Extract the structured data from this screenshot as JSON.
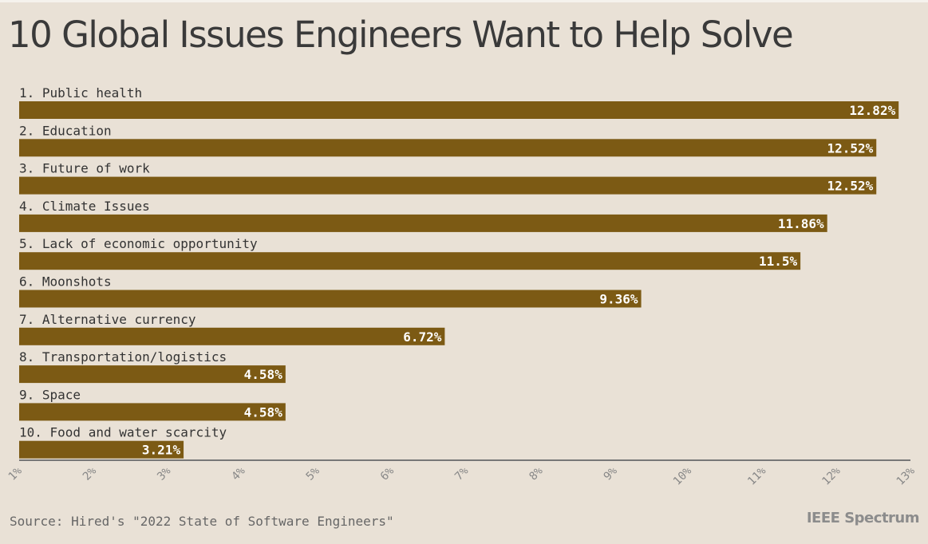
{
  "title": "10 Global Issues Engineers Want to Help Solve",
  "source": "Source: Hired's \"2022 State of Software Engineers\"",
  "brand": "IEEE Spectrum",
  "colors": {
    "bar": "#7c5a14",
    "background": "#e9e1d6",
    "axis": "#777777"
  },
  "chart_data": {
    "type": "bar",
    "orientation": "horizontal",
    "title": "10 Global Issues Engineers Want to Help Solve",
    "categories": [
      "1. Public health",
      "2. Education",
      "3. Future of work",
      "4. Climate Issues",
      "5. Lack of economic opportunity",
      "6. Moonshots",
      "7. Alternative currency",
      "8. Transportation/logistics",
      "9. Space",
      "10. Food and water scarcity"
    ],
    "values": [
      12.82,
      12.52,
      12.52,
      11.86,
      11.5,
      9.36,
      6.72,
      4.58,
      4.58,
      3.21
    ],
    "value_labels": [
      "12.82%",
      "12.52%",
      "12.52%",
      "11.86%",
      "11.5%",
      "9.36%",
      "6.72%",
      "4.58%",
      "4.58%",
      "3.21%"
    ],
    "xlim": [
      1,
      13
    ],
    "ticks": [
      1,
      2,
      3,
      4,
      5,
      6,
      7,
      8,
      9,
      10,
      11,
      12,
      13
    ],
    "tick_labels": [
      "1%",
      "2%",
      "3%",
      "4%",
      "5%",
      "6%",
      "7%",
      "8%",
      "9%",
      "10%",
      "11%",
      "12%",
      "13%"
    ],
    "grid": false,
    "legend": "none"
  }
}
